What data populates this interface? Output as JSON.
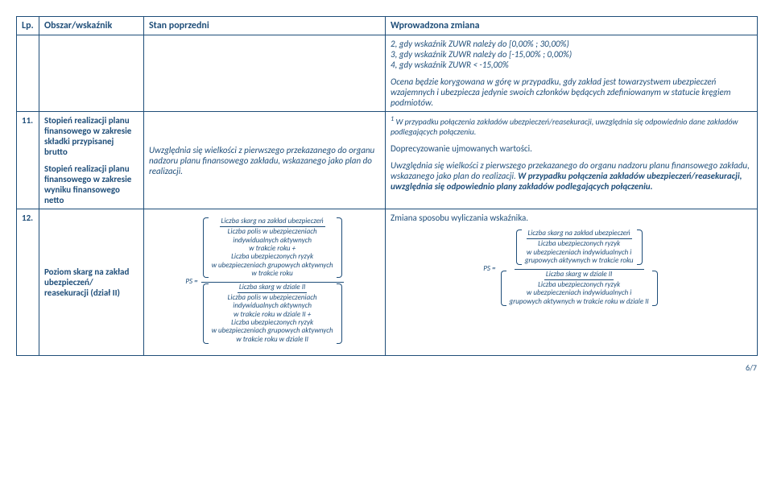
{
  "colors": {
    "text": "#1f4e79",
    "border": "#1f4e79",
    "background": "#ffffff"
  },
  "header": {
    "lp": "Lp.",
    "obszar": "Obszar/wskaźnik",
    "stan": "Stan poprzedni",
    "zmiana": "Wprowadzona zmiana"
  },
  "row_top": {
    "zmiana_line1": "2, gdy wskaźnik ZUWR należy do [0,00% ; 30,00%)",
    "zmiana_line2": "3, gdy wskaźnik ZUWR należy do [-15,00% ; 0,00%)",
    "zmiana_line3": "4, gdy wskaźnik ZUWR < -15,00%",
    "zmiana_para": "Ocena będzie korygowana w górę w przypadku, gdy zakład jest towarzystwem ubezpieczeń wzajemnych i ubezpiecza jedynie swoich członków będących zdefiniowanym w statucie kręgiem podmiotów."
  },
  "row11": {
    "num": "11.",
    "obszar_bold1": "Stopień realizacji planu finansowego w zakresie składki przypisanej brutto",
    "obszar_bold2": "Stopień realizacji planu finansowego w zakresie wyniku finansowego netto",
    "stan": "Uwzględnia się wielkości z pierwszego przekazanego do organu nadzoru planu finansowego zakładu, wskazanego jako plan do realizacji.",
    "footnote_marker": "1",
    "footnote": "W przypadku połączenia zakładów ubezpieczeń/reasekuracji, uwzględnia się odpowiednio dane zakładów podlegających połączeniu.",
    "zmiana_line1": "Doprecyzowanie ujmowanych wartości.",
    "zmiana_para_prefix": "Uwzględnia się wielkości z pierwszego przekazanego do organu nadzoru planu finansowego zakładu, wskazanego jako plan do realizacji. ",
    "zmiana_para_bold": "W przypadku połączenia zakładów ubezpieczeń/reasekuracji, uwzględnia się odpowiednio plany zakładów podlegających połączeniu."
  },
  "row12": {
    "num": "12.",
    "obszar": "Poziom skarg na zakład ubezpieczeń/ reasekuracji (dział II)",
    "zmiana_line1": "Zmiana sposobu wyliczania wskaźnika.",
    "formula_left": {
      "ps": "PS =",
      "outer_num": {
        "top": "Liczba skarg na zakład ubezpieczeń",
        "inner_num1": "Liczba polis w ubezpieczeniach",
        "inner_num2": "indywidualnych aktywnych",
        "inner_num3": "w trakcie roku +",
        "inner_num4": "Liczba ubezpieczonych ryzyk",
        "inner_num5": "w ubezpieczeniach grupowych aktywnych",
        "inner_num6": "w trakcie roku"
      },
      "outer_den": {
        "top": "Liczba skarg w dziale II",
        "inner_num1": "Liczba polis w ubezpieczeniach",
        "inner_num2": "indywidualnych aktywnych",
        "inner_num3": "w trakcie roku w dziale II +",
        "inner_num4": "Liczba ubezpieczonych ryzyk",
        "inner_num5": "w ubezpieczeniach grupowych aktywnych",
        "inner_num6": "w trakcie roku w dziale II"
      }
    },
    "formula_right": {
      "ps": "PS =",
      "outer_num": {
        "top": "Liczba skarg na zakład ubezpieczeń",
        "inner1": "Liczba ubezpieczonych ryzyk",
        "inner2": "w ubezpieczeniach indywidualnych i",
        "inner3": "grupowych aktywnych w trakcie roku"
      },
      "outer_den": {
        "top": "Liczba skarg w dziale II",
        "inner1": "Liczba ubezpieczonych ryzyk",
        "inner2": "w ubezpieczeniach indywidualnych i",
        "inner3": "grupowych aktywnych w trakcie roku w dziale II"
      }
    }
  },
  "page": "6/7"
}
